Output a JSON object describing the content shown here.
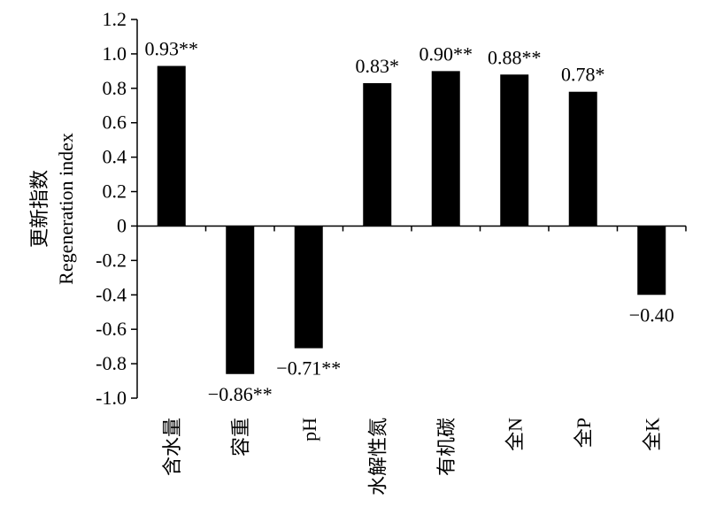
{
  "chart_data": {
    "type": "bar",
    "title": "",
    "ylabel": [
      "更新指数",
      "Regeneration index"
    ],
    "xlabel": "",
    "ylim": [
      -1.0,
      1.2
    ],
    "yticks": [
      "-1.0",
      "-0.8",
      "-0.6",
      "-0.4",
      "-0.2",
      "0",
      "0.2",
      "0.4",
      "0.6",
      "0.8",
      "1.0",
      "1.2"
    ],
    "ytick_values": [
      -1.0,
      -0.8,
      -0.6,
      -0.4,
      -0.2,
      0,
      0.2,
      0.4,
      0.6,
      0.8,
      1.0,
      1.2
    ],
    "grid": false,
    "categories": [
      "含水量",
      "容重",
      "pH",
      "水解性氮",
      "有机碳",
      "全N",
      "全P",
      "全K"
    ],
    "values": [
      0.93,
      -0.86,
      -0.71,
      0.83,
      0.9,
      0.88,
      0.78,
      -0.4
    ],
    "data_labels": [
      "0.93**",
      "−0.86**",
      "−0.71**",
      "0.83*",
      "0.90**",
      "0.88**",
      "0.78*",
      "−0.40"
    ],
    "bar_color": "#000000"
  }
}
